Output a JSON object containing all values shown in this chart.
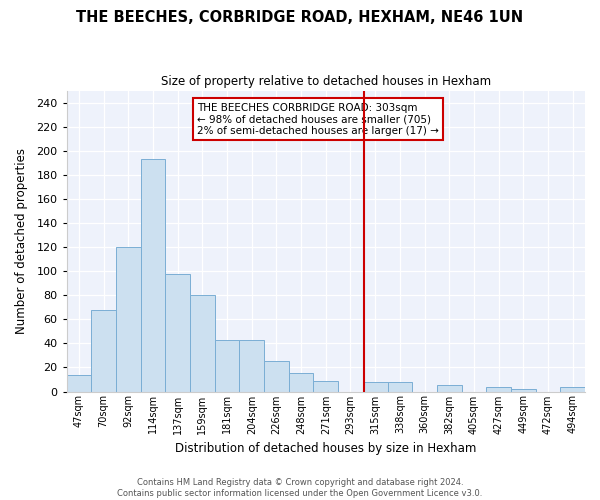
{
  "title": "THE BEECHES, CORBRIDGE ROAD, HEXHAM, NE46 1UN",
  "subtitle": "Size of property relative to detached houses in Hexham",
  "xlabel": "Distribution of detached houses by size in Hexham",
  "ylabel": "Number of detached properties",
  "bar_color": "#cce0f0",
  "bar_edge_color": "#7aaed4",
  "categories": [
    "47sqm",
    "70sqm",
    "92sqm",
    "114sqm",
    "137sqm",
    "159sqm",
    "181sqm",
    "204sqm",
    "226sqm",
    "248sqm",
    "271sqm",
    "293sqm",
    "315sqm",
    "338sqm",
    "360sqm",
    "382sqm",
    "405sqm",
    "427sqm",
    "449sqm",
    "472sqm",
    "494sqm"
  ],
  "values": [
    14,
    68,
    120,
    193,
    98,
    80,
    43,
    43,
    25,
    15,
    9,
    0,
    8,
    8,
    0,
    5,
    0,
    4,
    2,
    0,
    4
  ],
  "ylim": [
    0,
    250
  ],
  "yticks": [
    0,
    20,
    40,
    60,
    80,
    100,
    120,
    140,
    160,
    180,
    200,
    220,
    240
  ],
  "vline_x_idx": 11.55,
  "vline_color": "#cc0000",
  "annotation_title": "THE BEECHES CORBRIDGE ROAD: 303sqm",
  "annotation_line1": "← 98% of detached houses are smaller (705)",
  "annotation_line2": "2% of semi-detached houses are larger (17) →",
  "footer_line1": "Contains HM Land Registry data © Crown copyright and database right 2024.",
  "footer_line2": "Contains public sector information licensed under the Open Government Licence v3.0.",
  "background_color": "#eef2fb",
  "grid_color": "#ffffff"
}
